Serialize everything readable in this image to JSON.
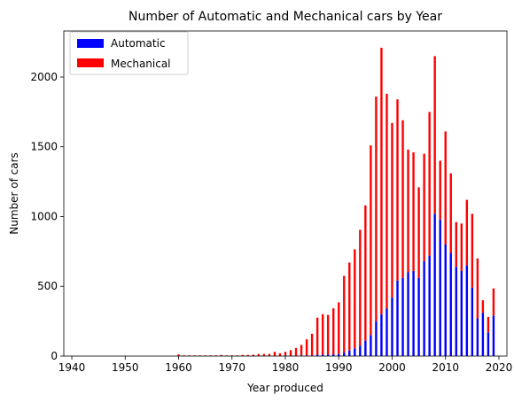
{
  "chart_data": {
    "type": "bar",
    "stacked": true,
    "title": "Number of Automatic and Mechanical cars by Year",
    "xlabel": "Year produced",
    "ylabel": "Number of cars",
    "xlim": [
      1938.5,
      2021.5
    ],
    "ylim": [
      0,
      2330
    ],
    "xticks": [
      1940,
      1950,
      1960,
      1970,
      1980,
      1990,
      2000,
      2010,
      2020
    ],
    "yticks": [
      0,
      500,
      1000,
      1500,
      2000
    ],
    "legend_position": "upper-left",
    "grid": false,
    "x": [
      1960,
      1961,
      1962,
      1963,
      1964,
      1965,
      1966,
      1967,
      1968,
      1969,
      1970,
      1971,
      1972,
      1973,
      1974,
      1975,
      1976,
      1977,
      1978,
      1979,
      1980,
      1981,
      1982,
      1983,
      1984,
      1985,
      1986,
      1987,
      1988,
      1989,
      1990,
      1991,
      1992,
      1993,
      1994,
      1995,
      1996,
      1997,
      1998,
      1999,
      2000,
      2001,
      2002,
      2003,
      2004,
      2005,
      2006,
      2007,
      2008,
      2009,
      2010,
      2011,
      2012,
      2013,
      2014,
      2015,
      2016,
      2017,
      2018,
      2019
    ],
    "series": [
      {
        "name": "Automatic",
        "color": "#0000ff",
        "values": [
          0,
          0,
          0,
          0,
          0,
          0,
          0,
          0,
          0,
          0,
          0,
          0,
          0,
          0,
          0,
          0,
          0,
          0,
          0,
          0,
          5,
          2,
          3,
          5,
          5,
          5,
          10,
          10,
          10,
          12,
          15,
          25,
          40,
          55,
          75,
          110,
          150,
          250,
          300,
          340,
          420,
          540,
          560,
          600,
          610,
          560,
          680,
          720,
          1020,
          980,
          800,
          740,
          640,
          610,
          650,
          490,
          270,
          310,
          170,
          290
        ]
      },
      {
        "name": "Mechanical",
        "color": "#ff0000",
        "values": [
          12,
          5,
          5,
          5,
          5,
          5,
          5,
          5,
          8,
          5,
          5,
          5,
          8,
          8,
          10,
          15,
          15,
          15,
          30,
          20,
          25,
          40,
          55,
          75,
          115,
          155,
          265,
          290,
          285,
          330,
          370,
          550,
          630,
          710,
          830,
          970,
          1360,
          1610,
          1910,
          1540,
          1250,
          1300,
          1130,
          880,
          850,
          650,
          770,
          1030,
          1130,
          420,
          810,
          570,
          320,
          340,
          470,
          530,
          430,
          90,
          110,
          195
        ]
      }
    ]
  }
}
